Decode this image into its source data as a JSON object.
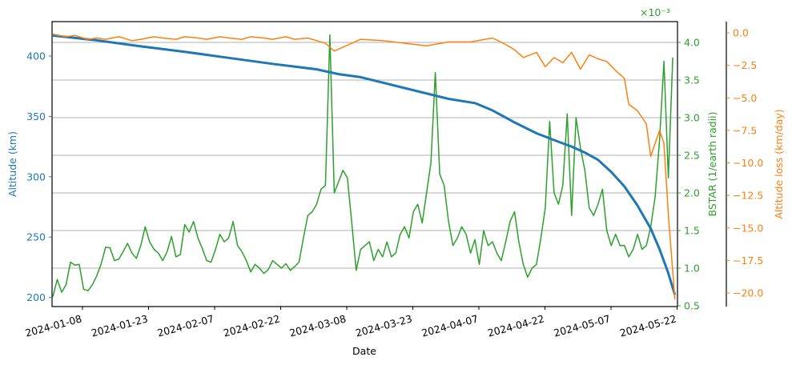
{
  "chart_data": {
    "type": "line",
    "title": "",
    "xlabel": "Date",
    "x_ticks": [
      "2024-01-08",
      "2024-01-23",
      "2024-02-07",
      "2024-02-22",
      "2024-03-08",
      "2024-03-23",
      "2024-04-07",
      "2024-04-22",
      "2024-05-07",
      "2024-05-22"
    ],
    "x_range": [
      "2024-01-01",
      "2024-05-22"
    ],
    "axes": [
      {
        "name": "altitude",
        "side": "left",
        "label": "Altitude (km)",
        "color": "#1f77b4",
        "ticks": [
          "200",
          "250",
          "300",
          "350",
          "400"
        ],
        "ylim": [
          192,
          429
        ]
      },
      {
        "name": "bstar",
        "side": "right",
        "label": "BSTAR (1/earth radii)",
        "color": "#2ca02c",
        "offset_text": "×10⁻³",
        "ticks": [
          "0.5",
          "1.0",
          "1.5",
          "2.0",
          "2.5",
          "3.0",
          "3.5",
          "4.0"
        ],
        "ylim": [
          0.5,
          4.29
        ],
        "grid": true
      },
      {
        "name": "altitude_loss",
        "side": "right-offset",
        "label": "Altitude loss (km/day)",
        "color": "#ff7f0e",
        "ticks": [
          "0.0",
          "−2.5",
          "−5.0",
          "−7.5",
          "−10.0",
          "−12.5",
          "−15.0",
          "−17.5",
          "−20.0"
        ],
        "ylim": [
          -21,
          1
        ]
      }
    ],
    "series": [
      {
        "name": "Altitude (km)",
        "axis": "altitude",
        "color": "#1f77b4",
        "x_days": [
          0,
          10,
          20,
          30,
          40,
          50,
          60,
          65,
          70,
          75,
          80,
          90,
          96,
          100,
          105,
          110,
          115,
          118,
          121,
          124,
          127,
          130,
          133,
          136,
          138,
          140,
          141.5
        ],
        "values": [
          417,
          413,
          408,
          403.5,
          398.5,
          393.5,
          389,
          385,
          382.5,
          378,
          373.5,
          364.5,
          361,
          355,
          345,
          336,
          329,
          325,
          320,
          314,
          304,
          292,
          276,
          257,
          240,
          220,
          202
        ]
      },
      {
        "name": "BSTAR",
        "axis": "bstar",
        "color": "#2ca02c",
        "x_days": [
          0,
          1,
          2,
          3,
          4,
          5,
          6,
          7,
          8,
          9,
          10,
          11,
          12,
          13,
          14,
          15,
          16,
          17,
          18,
          19,
          20,
          21,
          22,
          23,
          24,
          25,
          26,
          27,
          28,
          29,
          30,
          31,
          32,
          33,
          34,
          35,
          36,
          37,
          38,
          39,
          40,
          41,
          42,
          43,
          44,
          45,
          46,
          47,
          48,
          49,
          50,
          51,
          52,
          53,
          54,
          55,
          56,
          57,
          58,
          59,
          60,
          61,
          62,
          63,
          64,
          65,
          66,
          67,
          68,
          69,
          70,
          71,
          72,
          73,
          74,
          75,
          76,
          77,
          78,
          79,
          80,
          81,
          82,
          83,
          84,
          85,
          86,
          87,
          88,
          89,
          90,
          91,
          92,
          93,
          94,
          95,
          96,
          97,
          98,
          99,
          100,
          101,
          102,
          103,
          104,
          105,
          106,
          107,
          108,
          109,
          110,
          111,
          112,
          113,
          114,
          115,
          116,
          117,
          118,
          119,
          120,
          121,
          122,
          123,
          124,
          125,
          126,
          127,
          128,
          129,
          130,
          131,
          132,
          133,
          134,
          135,
          136,
          137,
          138,
          139,
          140,
          141
        ],
        "values": [
          0.62,
          0.85,
          0.68,
          0.78,
          1.08,
          1.04,
          1.05,
          0.72,
          0.7,
          0.78,
          0.9,
          1.06,
          1.28,
          1.27,
          1.1,
          1.12,
          1.22,
          1.33,
          1.2,
          1.13,
          1.3,
          1.55,
          1.35,
          1.25,
          1.2,
          1.1,
          1.22,
          1.42,
          1.15,
          1.18,
          1.58,
          1.48,
          1.62,
          1.4,
          1.26,
          1.1,
          1.08,
          1.25,
          1.45,
          1.35,
          1.4,
          1.62,
          1.3,
          1.22,
          1.1,
          0.95,
          1.05,
          1.0,
          0.93,
          0.98,
          1.1,
          1.05,
          1.0,
          1.06,
          0.97,
          1.02,
          1.08,
          1.4,
          1.7,
          1.75,
          1.85,
          2.05,
          2.1,
          4.1,
          2.0,
          2.15,
          2.3,
          2.2,
          1.6,
          0.97,
          1.25,
          1.3,
          1.35,
          1.1,
          1.25,
          1.15,
          1.35,
          1.15,
          1.2,
          1.45,
          1.55,
          1.4,
          1.75,
          1.85,
          1.6,
          2.0,
          2.4,
          3.6,
          2.25,
          2.1,
          1.62,
          1.3,
          1.4,
          1.55,
          1.45,
          1.2,
          1.38,
          1.05,
          1.5,
          1.3,
          1.35,
          1.2,
          1.1,
          1.35,
          1.62,
          1.75,
          1.35,
          1.05,
          0.88,
          1.0,
          1.05,
          1.4,
          1.8,
          2.95,
          2.0,
          1.85,
          2.1,
          3.05,
          1.7,
          3.0,
          2.6,
          2.3,
          1.8,
          1.7,
          1.85,
          2.05,
          1.5,
          1.3,
          1.45,
          1.3,
          1.3,
          1.15,
          1.25,
          1.45,
          1.25,
          1.3,
          1.55,
          1.95,
          2.7,
          3.75,
          2.2,
          3.8,
          2.4,
          2.05,
          1.75
        ]
      },
      {
        "name": "Altitude loss (km/day)",
        "axis": "altitude_loss",
        "color": "#ff7f0e",
        "x_days": [
          0,
          3,
          5,
          8,
          10,
          12,
          15,
          18,
          20,
          23,
          25,
          28,
          30,
          33,
          35,
          38,
          40,
          43,
          45,
          48,
          50,
          53,
          55,
          58,
          60,
          62,
          64,
          66,
          70,
          75,
          80,
          85,
          90,
          95,
          100,
          103,
          105,
          107,
          110,
          112,
          114,
          116,
          118,
          120,
          122,
          124,
          126,
          128,
          130,
          131,
          133,
          135,
          136,
          137,
          138,
          139,
          140,
          141.5
        ],
        "values": [
          -0.1,
          -0.3,
          -0.2,
          -0.5,
          -0.4,
          -0.5,
          -0.3,
          -0.6,
          -0.5,
          -0.3,
          -0.4,
          -0.5,
          -0.3,
          -0.4,
          -0.5,
          -0.3,
          -0.4,
          -0.5,
          -0.3,
          -0.4,
          -0.5,
          -0.3,
          -0.5,
          -0.4,
          -0.6,
          -0.8,
          -1.4,
          -1.1,
          -0.5,
          -0.6,
          -0.8,
          -1.0,
          -0.7,
          -0.7,
          -0.4,
          -0.9,
          -1.3,
          -1.9,
          -1.5,
          -2.6,
          -1.9,
          -2.3,
          -1.5,
          -2.8,
          -1.7,
          -2.0,
          -2.2,
          -2.9,
          -3.5,
          -5.5,
          -6.0,
          -7.0,
          -9.5,
          -8.5,
          -7.5,
          -8.5,
          -14.0,
          -20.5
        ]
      }
    ],
    "legend": "none"
  }
}
